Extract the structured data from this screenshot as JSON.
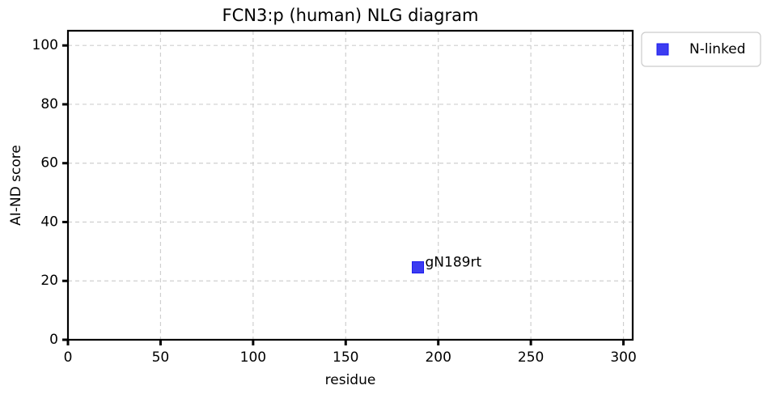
{
  "chart_data": {
    "type": "scatter",
    "title": "FCN3:p (human) NLG diagram",
    "xlabel": "residue",
    "ylabel": "AI-ND score",
    "series": [
      {
        "name": "N-linked",
        "color": "#1a1aee",
        "x": [
          189
        ],
        "values": [
          24.6
        ],
        "labels": [
          "gN189rt"
        ]
      }
    ],
    "xlim": [
      0,
      305
    ],
    "xticks": [
      0,
      50,
      100,
      150,
      200,
      250,
      300
    ],
    "ylim": [
      0,
      105
    ],
    "yticks": [
      0,
      20,
      40,
      60,
      80,
      100
    ],
    "grid": true,
    "legend": "upper right outside"
  }
}
